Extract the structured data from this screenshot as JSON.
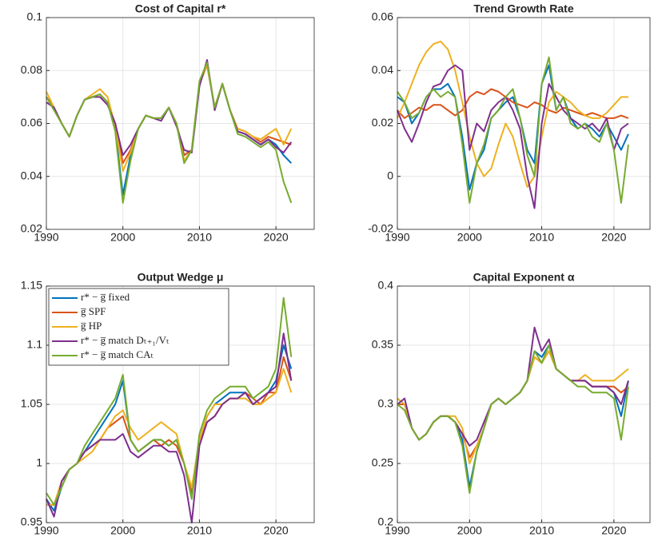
{
  "chart_data": [
    {
      "type": "line",
      "title": "Cost of Capital r*",
      "x": [
        1990,
        1991,
        1992,
        1993,
        1994,
        1995,
        1996,
        1997,
        1998,
        1999,
        2000,
        2001,
        2002,
        2003,
        2004,
        2005,
        2006,
        2007,
        2008,
        2009,
        2010,
        2011,
        2012,
        2013,
        2014,
        2015,
        2016,
        2017,
        2018,
        2019,
        2020,
        2021,
        2022
      ],
      "xlim": [
        1990,
        2025
      ],
      "xticks": [
        1990,
        2000,
        2010,
        2020
      ],
      "ylim": [
        0.02,
        0.1
      ],
      "yticks": [
        0.02,
        0.04,
        0.06,
        0.08,
        0.1
      ],
      "grid": true,
      "series": [
        {
          "color": "#0072BD",
          "values": [
            0.07,
            0.066,
            0.06,
            0.055,
            0.063,
            0.069,
            0.07,
            0.071,
            0.068,
            0.058,
            0.033,
            0.048,
            0.058,
            0.063,
            0.062,
            0.062,
            0.066,
            0.06,
            0.048,
            0.05,
            0.075,
            0.082,
            0.066,
            0.075,
            0.065,
            0.057,
            0.056,
            0.054,
            0.052,
            0.054,
            0.052,
            0.048,
            0.045
          ]
        },
        {
          "color": "#D95319",
          "values": [
            0.07,
            0.066,
            0.06,
            0.055,
            0.063,
            0.069,
            0.07,
            0.071,
            0.068,
            0.06,
            0.045,
            0.05,
            0.058,
            0.063,
            0.062,
            0.062,
            0.066,
            0.06,
            0.048,
            0.05,
            0.075,
            0.082,
            0.066,
            0.075,
            0.065,
            0.058,
            0.057,
            0.055,
            0.053,
            0.055,
            0.054,
            0.053,
            0.052
          ]
        },
        {
          "color": "#EDB120",
          "values": [
            0.072,
            0.066,
            0.06,
            0.055,
            0.063,
            0.069,
            0.071,
            0.073,
            0.07,
            0.059,
            0.042,
            0.049,
            0.058,
            0.063,
            0.062,
            0.062,
            0.066,
            0.06,
            0.046,
            0.05,
            0.075,
            0.082,
            0.066,
            0.075,
            0.065,
            0.058,
            0.057,
            0.055,
            0.054,
            0.056,
            0.058,
            0.052,
            0.058
          ]
        },
        {
          "color": "#7E2F8E",
          "values": [
            0.068,
            0.066,
            0.06,
            0.055,
            0.063,
            0.069,
            0.07,
            0.07,
            0.067,
            0.06,
            0.048,
            0.052,
            0.058,
            0.063,
            0.062,
            0.061,
            0.066,
            0.059,
            0.05,
            0.049,
            0.074,
            0.084,
            0.065,
            0.075,
            0.065,
            0.057,
            0.056,
            0.054,
            0.052,
            0.054,
            0.051,
            0.049,
            0.053
          ]
        },
        {
          "color": "#77AC30",
          "values": [
            0.07,
            0.065,
            0.06,
            0.055,
            0.063,
            0.069,
            0.07,
            0.071,
            0.068,
            0.057,
            0.03,
            0.046,
            0.058,
            0.063,
            0.062,
            0.062,
            0.066,
            0.06,
            0.045,
            0.05,
            0.076,
            0.083,
            0.066,
            0.075,
            0.065,
            0.056,
            0.055,
            0.053,
            0.051,
            0.053,
            0.05,
            0.038,
            0.03
          ]
        }
      ]
    },
    {
      "type": "line",
      "title": "Trend Growth Rate",
      "x": [
        1990,
        1991,
        1992,
        1993,
        1994,
        1995,
        1996,
        1997,
        1998,
        1999,
        2000,
        2001,
        2002,
        2003,
        2004,
        2005,
        2006,
        2007,
        2008,
        2009,
        2010,
        2011,
        2012,
        2013,
        2014,
        2015,
        2016,
        2017,
        2018,
        2019,
        2020,
        2021,
        2022
      ],
      "xlim": [
        1990,
        2025
      ],
      "xticks": [
        1990,
        2000,
        2010,
        2020
      ],
      "ylim": [
        -0.02,
        0.06
      ],
      "yticks": [
        -0.02,
        0,
        0.02,
        0.04,
        0.06
      ],
      "grid": true,
      "series": [
        {
          "color": "#0072BD",
          "values": [
            0.03,
            0.028,
            0.02,
            0.024,
            0.03,
            0.033,
            0.033,
            0.035,
            0.03,
            0.015,
            -0.005,
            0.005,
            0.01,
            0.022,
            0.025,
            0.028,
            0.03,
            0.022,
            0.01,
            0.005,
            0.035,
            0.042,
            0.025,
            0.03,
            0.022,
            0.018,
            0.02,
            0.018,
            0.015,
            0.02,
            0.015,
            0.01,
            0.016
          ]
        },
        {
          "color": "#D95319",
          "values": [
            0.025,
            0.022,
            0.024,
            0.026,
            0.025,
            0.027,
            0.027,
            0.025,
            0.023,
            0.025,
            0.03,
            0.032,
            0.031,
            0.033,
            0.032,
            0.03,
            0.028,
            0.027,
            0.026,
            0.028,
            0.027,
            0.025,
            0.024,
            0.026,
            0.025,
            0.024,
            0.023,
            0.024,
            0.023,
            0.022,
            0.022,
            0.023,
            0.022
          ]
        },
        {
          "color": "#EDB120",
          "values": [
            0.022,
            0.028,
            0.035,
            0.042,
            0.047,
            0.05,
            0.051,
            0.048,
            0.04,
            0.028,
            0.015,
            0.005,
            0.0,
            0.003,
            0.012,
            0.02,
            0.015,
            0.005,
            -0.004,
            0.0,
            0.015,
            0.028,
            0.032,
            0.03,
            0.028,
            0.025,
            0.023,
            0.022,
            0.022,
            0.024,
            0.027,
            0.03,
            0.03
          ]
        },
        {
          "color": "#7E2F8E",
          "values": [
            0.025,
            0.018,
            0.013,
            0.02,
            0.028,
            0.034,
            0.035,
            0.04,
            0.042,
            0.04,
            0.01,
            0.02,
            0.017,
            0.025,
            0.028,
            0.03,
            0.025,
            0.018,
            0.0,
            -0.012,
            0.02,
            0.035,
            0.03,
            0.025,
            0.022,
            0.02,
            0.018,
            0.02,
            0.017,
            0.022,
            0.01,
            0.018,
            0.02
          ]
        },
        {
          "color": "#77AC30",
          "values": [
            0.032,
            0.028,
            0.022,
            0.024,
            0.03,
            0.033,
            0.03,
            0.032,
            0.03,
            0.012,
            -0.01,
            0.005,
            0.012,
            0.022,
            0.025,
            0.03,
            0.033,
            0.022,
            0.008,
            0.0,
            0.035,
            0.045,
            0.025,
            0.03,
            0.02,
            0.018,
            0.02,
            0.015,
            0.013,
            0.02,
            0.01,
            -0.01,
            0.012
          ]
        }
      ]
    },
    {
      "type": "line",
      "title": "Output Wedge μ",
      "x": [
        1990,
        1991,
        1992,
        1993,
        1994,
        1995,
        1996,
        1997,
        1998,
        1999,
        2000,
        2001,
        2002,
        2003,
        2004,
        2005,
        2006,
        2007,
        2008,
        2009,
        2010,
        2011,
        2012,
        2013,
        2014,
        2015,
        2016,
        2017,
        2018,
        2019,
        2020,
        2021,
        2022
      ],
      "xlim": [
        1990,
        2025
      ],
      "xticks": [
        1990,
        2000,
        2010,
        2020
      ],
      "ylim": [
        0.95,
        1.15
      ],
      "yticks": [
        0.95,
        1,
        1.05,
        1.1,
        1.15
      ],
      "grid": true,
      "legend": "upper left",
      "series": [
        {
          "name": "r* − g̅ fixed",
          "color": "#0072BD",
          "values": [
            0.97,
            0.96,
            0.98,
            0.995,
            1.0,
            1.01,
            1.02,
            1.03,
            1.04,
            1.05,
            1.07,
            1.02,
            1.01,
            1.015,
            1.02,
            1.02,
            1.015,
            1.02,
            1.0,
            0.97,
            1.02,
            1.04,
            1.05,
            1.055,
            1.06,
            1.06,
            1.06,
            1.05,
            1.055,
            1.06,
            1.07,
            1.1,
            1.08
          ]
        },
        {
          "name": "g̅ SPF",
          "color": "#D95319",
          "values": [
            0.965,
            0.965,
            0.985,
            0.995,
            1.0,
            1.01,
            1.015,
            1.02,
            1.03,
            1.035,
            1.04,
            1.02,
            1.01,
            1.015,
            1.02,
            1.015,
            1.02,
            1.015,
            1.0,
            0.975,
            1.02,
            1.035,
            1.04,
            1.05,
            1.055,
            1.055,
            1.06,
            1.055,
            1.05,
            1.06,
            1.06,
            1.09,
            1.07
          ]
        },
        {
          "name": "g̅ HP",
          "color": "#EDB120",
          "values": [
            0.965,
            0.965,
            0.985,
            0.995,
            1.0,
            1.005,
            1.01,
            1.02,
            1.03,
            1.04,
            1.045,
            1.03,
            1.02,
            1.025,
            1.03,
            1.035,
            1.03,
            1.025,
            1.0,
            0.98,
            1.02,
            1.04,
            1.05,
            1.05,
            1.055,
            1.055,
            1.055,
            1.05,
            1.05,
            1.055,
            1.06,
            1.08,
            1.06
          ]
        },
        {
          "name": "r* − g̅ match Dₜ₊₁/Vₜ",
          "color": "#7E2F8E",
          "values": [
            0.97,
            0.955,
            0.985,
            0.995,
            1.0,
            1.01,
            1.015,
            1.02,
            1.02,
            1.02,
            1.025,
            1.01,
            1.005,
            1.01,
            1.015,
            1.015,
            1.01,
            1.01,
            0.99,
            0.95,
            1.015,
            1.035,
            1.04,
            1.05,
            1.055,
            1.055,
            1.06,
            1.05,
            1.055,
            1.06,
            1.065,
            1.11,
            1.07
          ]
        },
        {
          "name": "r* − g̅ match CAₜ",
          "color": "#77AC30",
          "values": [
            0.975,
            0.965,
            0.98,
            0.995,
            1.0,
            1.015,
            1.025,
            1.035,
            1.045,
            1.055,
            1.075,
            1.02,
            1.01,
            1.015,
            1.02,
            1.02,
            1.015,
            1.02,
            1.0,
            0.97,
            1.025,
            1.045,
            1.055,
            1.06,
            1.065,
            1.065,
            1.065,
            1.055,
            1.06,
            1.065,
            1.08,
            1.14,
            1.09
          ]
        }
      ]
    },
    {
      "type": "line",
      "title": "Capital Exponent α",
      "x": [
        1990,
        1991,
        1992,
        1993,
        1994,
        1995,
        1996,
        1997,
        1998,
        1999,
        2000,
        2001,
        2002,
        2003,
        2004,
        2005,
        2006,
        2007,
        2008,
        2009,
        2010,
        2011,
        2012,
        2013,
        2014,
        2015,
        2016,
        2017,
        2018,
        2019,
        2020,
        2021,
        2022
      ],
      "xlim": [
        1990,
        2025
      ],
      "xticks": [
        1990,
        2000,
        2010,
        2020
      ],
      "ylim": [
        0.2,
        0.4
      ],
      "yticks": [
        0.2,
        0.25,
        0.3,
        0.35,
        0.4
      ],
      "grid": true,
      "series": [
        {
          "color": "#0072BD",
          "values": [
            0.305,
            0.3,
            0.28,
            0.27,
            0.275,
            0.285,
            0.29,
            0.29,
            0.285,
            0.27,
            0.23,
            0.26,
            0.28,
            0.3,
            0.305,
            0.3,
            0.305,
            0.31,
            0.32,
            0.345,
            0.34,
            0.35,
            0.33,
            0.325,
            0.32,
            0.32,
            0.32,
            0.315,
            0.315,
            0.315,
            0.31,
            0.29,
            0.32
          ]
        },
        {
          "color": "#D95319",
          "values": [
            0.3,
            0.3,
            0.28,
            0.27,
            0.275,
            0.285,
            0.29,
            0.29,
            0.285,
            0.275,
            0.255,
            0.265,
            0.28,
            0.3,
            0.305,
            0.3,
            0.305,
            0.31,
            0.32,
            0.34,
            0.335,
            0.345,
            0.33,
            0.325,
            0.32,
            0.32,
            0.32,
            0.315,
            0.315,
            0.315,
            0.315,
            0.31,
            0.315
          ]
        },
        {
          "color": "#EDB120",
          "values": [
            0.305,
            0.3,
            0.28,
            0.27,
            0.275,
            0.285,
            0.29,
            0.29,
            0.29,
            0.28,
            0.25,
            0.265,
            0.28,
            0.3,
            0.305,
            0.3,
            0.305,
            0.31,
            0.32,
            0.34,
            0.335,
            0.345,
            0.33,
            0.325,
            0.32,
            0.32,
            0.325,
            0.32,
            0.32,
            0.32,
            0.32,
            0.325,
            0.33
          ]
        },
        {
          "color": "#7E2F8E",
          "values": [
            0.3,
            0.305,
            0.28,
            0.27,
            0.275,
            0.285,
            0.29,
            0.29,
            0.285,
            0.275,
            0.265,
            0.27,
            0.285,
            0.3,
            0.305,
            0.3,
            0.305,
            0.31,
            0.32,
            0.365,
            0.345,
            0.355,
            0.33,
            0.325,
            0.32,
            0.32,
            0.32,
            0.315,
            0.315,
            0.315,
            0.31,
            0.3,
            0.32
          ]
        },
        {
          "color": "#77AC30",
          "values": [
            0.3,
            0.295,
            0.28,
            0.27,
            0.275,
            0.285,
            0.29,
            0.29,
            0.285,
            0.265,
            0.225,
            0.26,
            0.28,
            0.3,
            0.305,
            0.3,
            0.305,
            0.31,
            0.32,
            0.345,
            0.335,
            0.35,
            0.33,
            0.325,
            0.32,
            0.315,
            0.315,
            0.31,
            0.31,
            0.31,
            0.305,
            0.27,
            0.315
          ]
        }
      ]
    }
  ]
}
